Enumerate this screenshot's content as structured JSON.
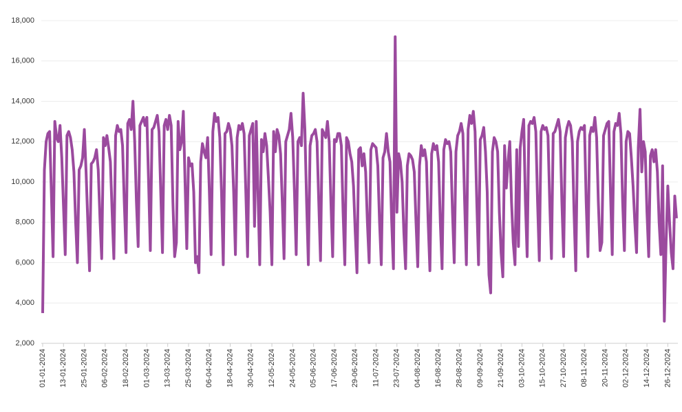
{
  "chart_data": {
    "type": "line",
    "categories": [
      "01-01-2024",
      null,
      null,
      null,
      null,
      null,
      null,
      null,
      null,
      null,
      null,
      null,
      "13-01-2024",
      null,
      null,
      null,
      null,
      null,
      null,
      null,
      null,
      null,
      null,
      null,
      "25-01-2024",
      null,
      null,
      null,
      null,
      null,
      null,
      null,
      null,
      null,
      null,
      null,
      "06-02-2024",
      null,
      null,
      null,
      null,
      null,
      null,
      null,
      null,
      null,
      null,
      null,
      "18-02-2024",
      null,
      null,
      null,
      null,
      null,
      null,
      null,
      null,
      null,
      null,
      null,
      "01-03-2024",
      null,
      null,
      null,
      null,
      null,
      null,
      null,
      null,
      null,
      null,
      null,
      "13-03-2024",
      null,
      null,
      null,
      null,
      null,
      null,
      null,
      null,
      null,
      null,
      null,
      "25-03-2024",
      null,
      null,
      null,
      null,
      null,
      null,
      null,
      null,
      null,
      null,
      null,
      "06-04-2024",
      null,
      null,
      null,
      null,
      null,
      null,
      null,
      null,
      null,
      null,
      null,
      "18-04-2024",
      null,
      null,
      null,
      null,
      null,
      null,
      null,
      null,
      null,
      null,
      null,
      "30-04-2024",
      null,
      null,
      null,
      null,
      null,
      null,
      null,
      null,
      null,
      null,
      null,
      "12-05-2024",
      null,
      null,
      null,
      null,
      null,
      null,
      null,
      null,
      null,
      null,
      null,
      "24-05-2024",
      null,
      null,
      null,
      null,
      null,
      null,
      null,
      null,
      null,
      null,
      null,
      "05-06-2024",
      null,
      null,
      null,
      null,
      null,
      null,
      null,
      null,
      null,
      null,
      null,
      "17-06-2024",
      null,
      null,
      null,
      null,
      null,
      null,
      null,
      null,
      null,
      null,
      null,
      "29-06-2024",
      null,
      null,
      null,
      null,
      null,
      null,
      null,
      null,
      null,
      null,
      null,
      "11-07-2024",
      null,
      null,
      null,
      null,
      null,
      null,
      null,
      null,
      null,
      null,
      null,
      "23-07-2024",
      null,
      null,
      null,
      null,
      null,
      null,
      null,
      null,
      null,
      null,
      null,
      "04-08-2024",
      null,
      null,
      null,
      null,
      null,
      null,
      null,
      null,
      null,
      null,
      null,
      "16-08-2024",
      null,
      null,
      null,
      null,
      null,
      null,
      null,
      null,
      null,
      null,
      null,
      "28-08-2024",
      null,
      null,
      null,
      null,
      null,
      null,
      null,
      null,
      null,
      null,
      null,
      "09-09-2024",
      null,
      null,
      null,
      null,
      null,
      null,
      null,
      null,
      null,
      null,
      null,
      "21-09-2024",
      null,
      null,
      null,
      null,
      null,
      null,
      null,
      null,
      null,
      null,
      null,
      "03-10-2024",
      null,
      null,
      null,
      null,
      null,
      null,
      null,
      null,
      null,
      null,
      null,
      "15-10-2024",
      null,
      null,
      null,
      null,
      null,
      null,
      null,
      null,
      null,
      null,
      null,
      "27-10-2024",
      null,
      null,
      null,
      null,
      null,
      null,
      null,
      null,
      null,
      null,
      null,
      "08-11-2024",
      null,
      null,
      null,
      null,
      null,
      null,
      null,
      null,
      null,
      null,
      null,
      "20-11-2024",
      null,
      null,
      null,
      null,
      null,
      null,
      null,
      null,
      null,
      null,
      null,
      "02-12-2024",
      null,
      null,
      null,
      null,
      null,
      null,
      null,
      null,
      null,
      null,
      null,
      "14-12-2024",
      null,
      null,
      null,
      null,
      null,
      null,
      null,
      null,
      null,
      null,
      null,
      "26-12-2024",
      null,
      null,
      null,
      null,
      null
    ],
    "values": [
      3500,
      10600,
      12000,
      12400,
      12500,
      9500,
      6300,
      13000,
      12200,
      12000,
      12800,
      11200,
      8800,
      6400,
      12300,
      12500,
      12200,
      11600,
      10500,
      8000,
      6000,
      10600,
      10800,
      11200,
      12600,
      10500,
      8000,
      5600,
      10900,
      11000,
      11200,
      11600,
      10600,
      8200,
      6200,
      12200,
      11800,
      12300,
      11700,
      11000,
      8500,
      6200,
      12300,
      12800,
      12500,
      12600,
      11800,
      9000,
      6500,
      12900,
      13100,
      12600,
      14000,
      12000,
      9000,
      6800,
      12800,
      13000,
      13200,
      12800,
      13200,
      10000,
      6600,
      12600,
      12700,
      13000,
      13300,
      12500,
      9500,
      6500,
      12800,
      13100,
      12600,
      13300,
      12800,
      9000,
      6300,
      7000,
      13000,
      11600,
      12000,
      13500,
      10000,
      6700,
      11200,
      10800,
      10900,
      9500,
      6000,
      6300,
      5500,
      11000,
      11900,
      11500,
      11200,
      12200,
      9500,
      6400,
      12500,
      13400,
      13000,
      13200,
      12200,
      9500,
      5900,
      12400,
      12500,
      12900,
      12600,
      11800,
      9500,
      6400,
      12200,
      12800,
      12600,
      12900,
      12400,
      9500,
      6300,
      12300,
      12600,
      12900,
      7800,
      13000,
      9500,
      5900,
      12100,
      11500,
      12400,
      11800,
      10200,
      8500,
      5900,
      12500,
      11500,
      12600,
      12300,
      11400,
      9000,
      6200,
      12000,
      12300,
      12600,
      13400,
      12200,
      9500,
      6400,
      12000,
      12200,
      11800,
      14400,
      12600,
      9000,
      5900,
      11800,
      12300,
      12400,
      12600,
      12000,
      9000,
      6100,
      12600,
      12400,
      12200,
      13000,
      12000,
      9000,
      6300,
      12100,
      12000,
      12400,
      12400,
      11800,
      8500,
      5900,
      12200,
      12000,
      11400,
      11000,
      9800,
      7500,
      5500,
      11600,
      11700,
      10800,
      11400,
      10500,
      8000,
      6000,
      11600,
      11900,
      11800,
      11700,
      10800,
      8000,
      5900,
      11200,
      11500,
      12400,
      11500,
      11000,
      8000,
      5700,
      17200,
      8500,
      11400,
      11000,
      10000,
      7500,
      5700,
      10800,
      11400,
      11300,
      11100,
      10500,
      8000,
      5800,
      10800,
      11800,
      11300,
      11600,
      11000,
      8000,
      5600,
      11400,
      11900,
      11600,
      11800,
      11000,
      8000,
      5700,
      11600,
      12100,
      11900,
      12000,
      11500,
      8500,
      6000,
      11500,
      12300,
      12500,
      12900,
      12400,
      9000,
      5900,
      12600,
      13300,
      12900,
      13500,
      12500,
      9000,
      5900,
      12100,
      12300,
      12700,
      11500,
      9500,
      5400,
      4500,
      11500,
      12200,
      12000,
      11500,
      8500,
      6500,
      5300,
      11800,
      9700,
      11000,
      12000,
      9000,
      7000,
      5900,
      11600,
      6800,
      11700,
      12500,
      13100,
      9000,
      6300,
      12800,
      13000,
      12900,
      13200,
      12500,
      9000,
      6100,
      12500,
      12800,
      12600,
      12700,
      12300,
      9000,
      6200,
      12400,
      12500,
      12800,
      13100,
      12500,
      9000,
      6300,
      12200,
      12700,
      13000,
      12800,
      12000,
      8500,
      5600,
      12000,
      12500,
      12700,
      12600,
      12800,
      9000,
      6300,
      12300,
      12700,
      12500,
      13200,
      12200,
      9000,
      6600,
      7000,
      12300,
      12600,
      12900,
      13000,
      9500,
      6400,
      12500,
      12900,
      12800,
      13400,
      12400,
      9000,
      6600,
      12000,
      12500,
      12400,
      11200,
      9800,
      8000,
      6500,
      11700,
      13600,
      10500,
      12000,
      11500,
      8500,
      6300,
      11300,
      11600,
      11000,
      11600,
      10500,
      8000,
      6400,
      10800,
      3100,
      7000,
      9800,
      8000,
      6500,
      5700,
      9300,
      8200
    ],
    "color": "#9b4a9e",
    "ylim": [
      2000,
      18000
    ],
    "yticks": [
      {
        "value": 2000,
        "label": "2,000"
      },
      {
        "value": 4000,
        "label": "4,000"
      },
      {
        "value": 6000,
        "label": "6,000"
      },
      {
        "value": 8000,
        "label": "8,000"
      },
      {
        "value": 10000,
        "label": "10,000"
      },
      {
        "value": 12000,
        "label": "12,000"
      },
      {
        "value": 14000,
        "label": "14,000"
      },
      {
        "value": 16000,
        "label": "16,000"
      },
      {
        "value": 18000,
        "label": "18,000"
      }
    ],
    "grid": true
  }
}
